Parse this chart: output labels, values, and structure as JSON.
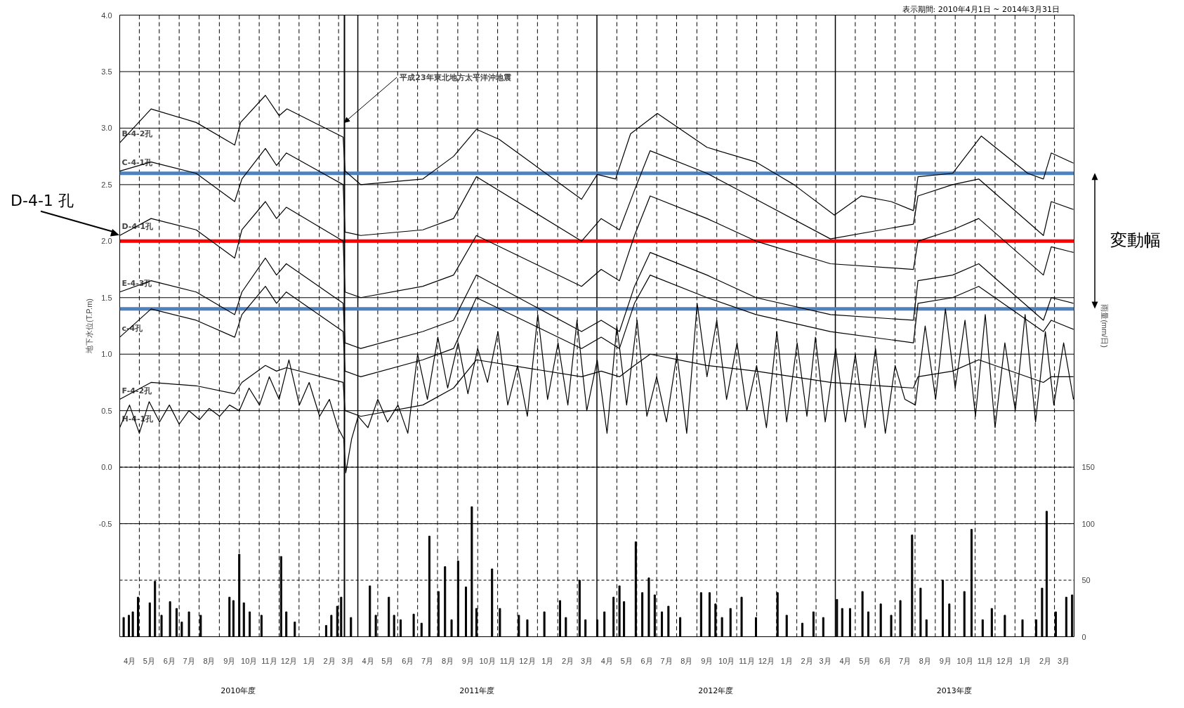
{
  "chart_data": {
    "type": "line",
    "ylabel": "地下水位(T.P.m)",
    "y2label": "雨量(mm/日)",
    "xlim": [
      "2010-04-01",
      "2014-04-01"
    ],
    "ylim": [
      -1.5,
      4.0
    ],
    "y2lim": [
      0,
      550
    ],
    "xticks": [
      {
        "value": "2010-04-16",
        "label": "4月"
      },
      {
        "value": "2010-05-16",
        "label": "5月"
      },
      {
        "value": "2010-06-16",
        "label": "6月"
      },
      {
        "value": "2010-07-16",
        "label": "7月"
      },
      {
        "value": "2010-08-16",
        "label": "8月"
      },
      {
        "value": "2010-09-16",
        "label": "9月"
      },
      {
        "value": "2010-10-16",
        "label": "10月"
      },
      {
        "value": "2010-11-16",
        "label": "11月"
      },
      {
        "value": "2010-12-16",
        "label": "12月"
      },
      {
        "value": "2011-01-16",
        "label": "1月"
      },
      {
        "value": "2011-02-16",
        "label": "2月"
      },
      {
        "value": "2011-03-16",
        "label": "3月"
      },
      {
        "value": "2011-04-16",
        "label": "4月"
      },
      {
        "value": "2011-05-16",
        "label": "5月"
      },
      {
        "value": "2011-06-16",
        "label": "6月"
      },
      {
        "value": "2011-07-16",
        "label": "7月"
      },
      {
        "value": "2011-08-16",
        "label": "8月"
      },
      {
        "value": "2011-09-16",
        "label": "9月"
      },
      {
        "value": "2011-10-16",
        "label": "10月"
      },
      {
        "value": "2011-11-16",
        "label": "11月"
      },
      {
        "value": "2011-12-16",
        "label": "12月"
      },
      {
        "value": "2012-01-16",
        "label": "1月"
      },
      {
        "value": "2012-02-16",
        "label": "2月"
      },
      {
        "value": "2012-03-16",
        "label": "3月"
      },
      {
        "value": "2012-04-16",
        "label": "4月"
      },
      {
        "value": "2012-05-16",
        "label": "5月"
      },
      {
        "value": "2012-06-16",
        "label": "6月"
      },
      {
        "value": "2012-07-16",
        "label": "7月"
      },
      {
        "value": "2012-08-16",
        "label": "8月"
      },
      {
        "value": "2012-09-16",
        "label": "9月"
      },
      {
        "value": "2012-10-16",
        "label": "10月"
      },
      {
        "value": "2012-11-16",
        "label": "11月"
      },
      {
        "value": "2012-12-16",
        "label": "12月"
      },
      {
        "value": "2013-01-16",
        "label": "1月"
      },
      {
        "value": "2013-02-16",
        "label": "2月"
      },
      {
        "value": "2013-03-16",
        "label": "3月"
      },
      {
        "value": "2013-04-16",
        "label": "4月"
      },
      {
        "value": "2013-05-16",
        "label": "5月"
      },
      {
        "value": "2013-06-16",
        "label": "6月"
      },
      {
        "value": "2013-07-16",
        "label": "7月"
      },
      {
        "value": "2013-08-16",
        "label": "8月"
      },
      {
        "value": "2013-09-16",
        "label": "9月"
      },
      {
        "value": "2013-10-16",
        "label": "10月"
      },
      {
        "value": "2013-11-16",
        "label": "11月"
      },
      {
        "value": "2013-12-16",
        "label": "12月"
      },
      {
        "value": "2014-01-16",
        "label": "1月"
      },
      {
        "value": "2014-02-16",
        "label": "2月"
      },
      {
        "value": "2014-03-16",
        "label": "3月"
      }
    ],
    "yticks": [
      {
        "value": -0.5,
        "label": "-0.5"
      },
      {
        "value": 0,
        "label": "0.0"
      },
      0.5,
      {
        "value": 1,
        "label": "1.0"
      },
      1.5,
      {
        "value": 2,
        "label": "2.0"
      },
      2.5,
      {
        "value": 3,
        "label": "3.0"
      },
      3.5,
      {
        "value": 4,
        "label": "4.0"
      }
    ],
    "y2ticks": [
      0,
      50,
      100,
      150
    ],
    "grid": true,
    "series": [
      {
        "name": "B-4-2孔",
        "color": "#000000",
        "x": [
          "2010-04-01",
          "2010-05-19",
          "2010-07-27",
          "2010-09-24",
          "2010-10-03",
          "2010-11-10",
          "2010-12-01",
          "2010-12-13",
          "2011-03-09",
          "2011-03-12",
          "2011-04-05",
          "2011-07-09",
          "2011-08-25",
          "2011-09-29",
          "2011-11-03",
          "2012-03-08",
          "2012-04-01",
          "2012-04-29",
          "2012-05-22",
          "2012-07-02",
          "2012-09-16",
          "2012-11-30",
          "2013-01-27",
          "2013-03-30",
          "2013-05-10",
          "2013-06-25",
          "2013-07-29",
          "2013-08-05",
          "2013-09-27",
          "2013-11-10",
          "2014-01-20",
          "2014-02-13",
          "2014-02-25",
          "2014-03-31"
        ],
        "values": [
          2.87,
          3.17,
          3.05,
          2.85,
          3.05,
          3.29,
          3.11,
          3.17,
          2.92,
          2.62,
          2.5,
          2.55,
          2.75,
          2.99,
          2.9,
          2.37,
          2.59,
          2.55,
          2.95,
          3.13,
          2.83,
          2.7,
          2.5,
          2.23,
          2.4,
          2.35,
          2.27,
          2.57,
          2.6,
          2.93,
          2.6,
          2.55,
          2.78,
          2.69
        ]
      },
      {
        "name": "C-4-1孔",
        "color": "#000000",
        "x": [
          "2010-04-01",
          "2010-05-19",
          "2010-07-27",
          "2010-09-24",
          "2010-10-05",
          "2010-11-10",
          "2010-11-27",
          "2010-12-12",
          "2011-03-09",
          "2011-03-12",
          "2011-04-05",
          "2011-07-09",
          "2011-08-25",
          "2011-09-29",
          "2012-03-08",
          "2012-04-07",
          "2012-05-05",
          "2012-05-28",
          "2012-06-21",
          "2012-09-16",
          "2012-11-30",
          "2013-03-24",
          "2013-07-29",
          "2013-08-05",
          "2013-09-27",
          "2013-11-06",
          "2014-02-13",
          "2014-02-25",
          "2014-03-31"
        ],
        "values": [
          2.62,
          2.7,
          2.6,
          2.35,
          2.55,
          2.82,
          2.67,
          2.78,
          2.5,
          2.08,
          2.05,
          2.1,
          2.2,
          2.57,
          2.0,
          2.2,
          2.1,
          2.45,
          2.8,
          2.6,
          2.37,
          2.02,
          2.15,
          2.4,
          2.5,
          2.55,
          2.05,
          2.35,
          2.28
        ]
      },
      {
        "name": "D-4-1孔",
        "color": "#000000",
        "x": [
          "2010-04-01",
          "2010-05-19",
          "2010-07-27",
          "2010-09-24",
          "2010-10-05",
          "2010-11-10",
          "2010-11-27",
          "2010-12-12",
          "2011-03-09",
          "2011-03-12",
          "2011-04-05",
          "2011-07-09",
          "2011-08-25",
          "2011-09-29",
          "2012-03-08",
          "2012-04-07",
          "2012-05-05",
          "2012-05-28",
          "2012-06-21",
          "2012-09-16",
          "2012-11-30",
          "2013-03-24",
          "2013-07-29",
          "2013-08-05",
          "2013-09-27",
          "2013-11-06",
          "2014-02-13",
          "2014-02-25",
          "2014-03-31"
        ],
        "values": [
          2.05,
          2.2,
          2.1,
          1.85,
          2.1,
          2.35,
          2.2,
          2.3,
          2.0,
          1.55,
          1.5,
          1.6,
          1.7,
          2.05,
          1.6,
          1.75,
          1.65,
          2.05,
          2.4,
          2.2,
          2.0,
          1.8,
          1.75,
          2.0,
          2.1,
          2.2,
          1.7,
          1.95,
          1.9
        ]
      },
      {
        "name": "E-4-3孔",
        "color": "#000000",
        "x": [
          "2010-04-01",
          "2010-05-19",
          "2010-07-27",
          "2010-09-24",
          "2010-10-05",
          "2010-11-10",
          "2010-11-27",
          "2010-12-12",
          "2011-03-09",
          "2011-03-12",
          "2011-04-05",
          "2011-07-09",
          "2011-08-25",
          "2011-09-29",
          "2012-03-08",
          "2012-04-07",
          "2012-05-05",
          "2012-05-28",
          "2012-06-21",
          "2012-09-16",
          "2012-11-30",
          "2013-03-24",
          "2013-07-29",
          "2013-08-05",
          "2013-09-27",
          "2013-11-06",
          "2014-02-13",
          "2014-02-25",
          "2014-03-31"
        ],
        "values": [
          1.55,
          1.65,
          1.55,
          1.35,
          1.55,
          1.85,
          1.7,
          1.8,
          1.45,
          1.1,
          1.05,
          1.2,
          1.3,
          1.7,
          1.2,
          1.3,
          1.2,
          1.6,
          1.9,
          1.7,
          1.5,
          1.35,
          1.3,
          1.65,
          1.7,
          1.8,
          1.3,
          1.5,
          1.45
        ]
      },
      {
        "name": "c-4孔",
        "color": "#000000",
        "x": [
          "2010-04-01",
          "2010-05-19",
          "2010-07-27",
          "2010-09-24",
          "2010-10-05",
          "2010-11-10",
          "2010-11-27",
          "2010-12-12",
          "2011-03-09",
          "2011-03-12",
          "2011-04-05",
          "2011-07-09",
          "2011-08-25",
          "2011-09-29",
          "2012-03-08",
          "2012-04-07",
          "2012-05-05",
          "2012-05-28",
          "2012-06-21",
          "2012-09-16",
          "2012-11-30",
          "2013-03-24",
          "2013-07-29",
          "2013-08-05",
          "2013-09-27",
          "2013-11-06",
          "2014-02-13",
          "2014-02-25",
          "2014-03-31"
        ],
        "values": [
          1.15,
          1.4,
          1.3,
          1.15,
          1.35,
          1.6,
          1.45,
          1.55,
          1.2,
          0.85,
          0.8,
          0.95,
          1.05,
          1.5,
          1.05,
          1.15,
          1.05,
          1.45,
          1.7,
          1.5,
          1.35,
          1.2,
          1.1,
          1.45,
          1.5,
          1.6,
          1.2,
          1.3,
          1.22
        ]
      },
      {
        "name": "F-4-2孔",
        "color": "#000000",
        "x": [
          "2010-04-01",
          "2010-05-19",
          "2010-07-27",
          "2010-09-24",
          "2010-10-05",
          "2010-11-10",
          "2010-11-27",
          "2010-12-12",
          "2011-03-09",
          "2011-03-12",
          "2011-04-05",
          "2011-07-09",
          "2011-08-25",
          "2011-09-29",
          "2012-03-08",
          "2012-04-07",
          "2012-05-05",
          "2012-05-28",
          "2012-06-21",
          "2012-09-16",
          "2012-11-30",
          "2013-03-24",
          "2013-07-29",
          "2013-08-05",
          "2013-09-27",
          "2013-11-06",
          "2014-02-13",
          "2014-02-25",
          "2014-03-31"
        ],
        "values": [
          0.6,
          0.75,
          0.72,
          0.65,
          0.75,
          0.9,
          0.85,
          0.88,
          0.75,
          0.5,
          0.45,
          0.55,
          0.7,
          0.95,
          0.8,
          0.85,
          0.8,
          0.9,
          1.0,
          0.9,
          0.85,
          0.75,
          0.7,
          0.8,
          0.85,
          0.95,
          0.75,
          0.8,
          0.8
        ]
      },
      {
        "name": "H-4-1孔",
        "color": "#000000",
        "x": [
          "2010-04-01",
          "2010-04-16",
          "2010-05-01",
          "2010-05-16",
          "2010-06-01",
          "2010-06-16",
          "2010-07-01",
          "2010-07-16",
          "2010-08-01",
          "2010-08-16",
          "2010-09-01",
          "2010-09-16",
          "2010-10-01",
          "2010-10-16",
          "2010-11-01",
          "2010-11-16",
          "2010-12-01",
          "2010-12-16",
          "2011-01-01",
          "2011-01-16",
          "2011-02-01",
          "2011-02-16",
          "2011-03-01",
          "2011-03-10",
          "2011-03-13",
          "2011-03-22",
          "2011-04-01",
          "2011-04-16",
          "2011-05-01",
          "2011-05-16",
          "2011-06-01",
          "2011-06-16",
          "2011-07-01",
          "2011-07-16",
          "2011-08-01",
          "2011-08-16",
          "2011-09-01",
          "2011-09-16",
          "2011-10-01",
          "2011-10-16",
          "2011-11-01",
          "2011-11-16",
          "2011-12-01",
          "2011-12-16",
          "2012-01-01",
          "2012-01-16",
          "2012-02-01",
          "2012-02-16",
          "2012-03-01",
          "2012-03-16",
          "2012-04-01",
          "2012-04-16",
          "2012-05-01",
          "2012-05-16",
          "2012-06-01",
          "2012-06-16",
          "2012-07-01",
          "2012-07-16",
          "2012-08-01",
          "2012-08-16",
          "2012-09-01",
          "2012-09-16",
          "2012-10-01",
          "2012-10-16",
          "2012-11-01",
          "2012-11-16",
          "2012-12-01",
          "2012-12-16",
          "2013-01-01",
          "2013-01-16",
          "2013-02-01",
          "2013-02-16",
          "2013-03-01",
          "2013-03-16",
          "2013-04-01",
          "2013-04-16",
          "2013-05-01",
          "2013-05-16",
          "2013-06-01",
          "2013-06-16",
          "2013-07-01",
          "2013-07-16",
          "2013-08-01",
          "2013-08-16",
          "2013-09-01",
          "2013-09-16",
          "2013-10-01",
          "2013-10-16",
          "2013-11-01",
          "2013-11-16",
          "2013-12-01",
          "2013-12-16",
          "2014-01-01",
          "2014-01-16",
          "2014-02-01",
          "2014-02-16",
          "2014-03-01",
          "2014-03-16",
          "2014-03-31"
        ],
        "values": [
          0.35,
          0.55,
          0.3,
          0.58,
          0.4,
          0.55,
          0.38,
          0.5,
          0.42,
          0.52,
          0.45,
          0.55,
          0.5,
          0.7,
          0.55,
          0.8,
          0.6,
          0.95,
          0.55,
          0.75,
          0.45,
          0.6,
          0.35,
          0.25,
          -0.05,
          0.25,
          0.45,
          0.35,
          0.6,
          0.4,
          0.55,
          0.3,
          1.0,
          0.6,
          1.15,
          0.7,
          1.1,
          0.65,
          1.05,
          0.75,
          1.2,
          0.55,
          0.9,
          0.45,
          1.35,
          0.6,
          1.1,
          0.55,
          1.3,
          0.5,
          0.95,
          0.3,
          1.25,
          0.55,
          1.3,
          0.45,
          0.8,
          0.4,
          1.0,
          0.3,
          1.45,
          0.8,
          1.3,
          0.6,
          1.1,
          0.5,
          0.9,
          0.35,
          1.2,
          0.4,
          1.1,
          0.45,
          1.15,
          0.4,
          1.05,
          0.4,
          1.0,
          0.35,
          1.05,
          0.3,
          0.9,
          0.6,
          0.55,
          1.25,
          0.6,
          1.4,
          0.7,
          1.3,
          0.45,
          1.35,
          0.35,
          1.1,
          0.5,
          1.35,
          0.4,
          1.2,
          0.55,
          1.1,
          0.6
        ]
      },
      {
        "type": "bar",
        "axis": "y2",
        "color": "#000000",
        "x": [
          "2010-04-07",
          "2010-04-15",
          "2010-04-21",
          "2010-04-29",
          "2010-05-17",
          "2010-05-25",
          "2010-06-04",
          "2010-06-17",
          "2010-06-27",
          "2010-07-05",
          "2010-07-16",
          "2010-08-03",
          "2010-09-16",
          "2010-09-22",
          "2010-10-01",
          "2010-10-08",
          "2010-10-17",
          "2010-11-04",
          "2010-12-04",
          "2010-12-12",
          "2010-12-25",
          "2011-02-11",
          "2011-02-19",
          "2011-02-28",
          "2011-03-06",
          "2011-03-21",
          "2011-04-19",
          "2011-04-28",
          "2011-05-18",
          "2011-05-26",
          "2011-06-05",
          "2011-06-25",
          "2011-07-07",
          "2011-07-19",
          "2011-08-02",
          "2011-08-12",
          "2011-08-22",
          "2011-09-01",
          "2011-09-13",
          "2011-09-22",
          "2011-09-29",
          "2011-10-23",
          "2011-11-04",
          "2011-12-03",
          "2011-12-16",
          "2012-01-11",
          "2012-02-04",
          "2012-02-13",
          "2012-03-05",
          "2012-03-14",
          "2012-04-01",
          "2012-04-12",
          "2012-04-26",
          "2012-05-05",
          "2012-05-12",
          "2012-05-30",
          "2012-06-09",
          "2012-06-19",
          "2012-06-28",
          "2012-07-09",
          "2012-07-19",
          "2012-08-06",
          "2012-09-07",
          "2012-09-20",
          "2012-09-29",
          "2012-10-09",
          "2012-10-22",
          "2012-11-08",
          "2012-11-30",
          "2013-01-02",
          "2013-01-16",
          "2013-02-09",
          "2013-02-26",
          "2013-03-13",
          "2013-04-03",
          "2013-04-11",
          "2013-04-23",
          "2013-05-12",
          "2013-05-21",
          "2013-06-09",
          "2013-06-25",
          "2013-07-09",
          "2013-07-27",
          "2013-08-09",
          "2013-08-18",
          "2013-09-12",
          "2013-09-22",
          "2013-10-15",
          "2013-10-26",
          "2013-11-12",
          "2013-11-26",
          "2013-12-16",
          "2014-01-12",
          "2014-02-02",
          "2014-02-11",
          "2014-02-18",
          "2014-03-04",
          "2014-03-20",
          "2014-03-29"
        ],
        "values": [
          17,
          19,
          22,
          35,
          30,
          49,
          19,
          31,
          25,
          13,
          22,
          19,
          35,
          32,
          73,
          30,
          22,
          19,
          71,
          22,
          13,
          10,
          19,
          27,
          35,
          17,
          45,
          19,
          35,
          19,
          15,
          20,
          12,
          89,
          40,
          62,
          15,
          67,
          44,
          115,
          25,
          60,
          25,
          19,
          15,
          22,
          32,
          17,
          50,
          15,
          15,
          22,
          35,
          45,
          31,
          84,
          39,
          52,
          37,
          22,
          27,
          17,
          39,
          39,
          29,
          17,
          25,
          35,
          17,
          39,
          19,
          12,
          22,
          17,
          33,
          25,
          25,
          40,
          22,
          29,
          19,
          32,
          90,
          43,
          15,
          50,
          29,
          40,
          95,
          15,
          25,
          19,
          15,
          15,
          43,
          111,
          22,
          35,
          37
        ]
      }
    ],
    "ref_lines": [
      {
        "axis": "y",
        "value": 2.6,
        "color": "#4f81bd"
      },
      {
        "axis": "y",
        "value": 2.0,
        "color": "#ff0000"
      },
      {
        "axis": "y",
        "value": 1.4,
        "color": "#4f81bd"
      },
      {
        "axis": "x",
        "value": "2011-03-11",
        "color": "#000000",
        "label": "平成23年東北地方太平洋沖地震"
      }
    ],
    "annotations": [
      "表示期間: 2010年4月1日 ~ 2014年3月31日",
      "D-4-1 孔",
      "変動幅",
      "2010年度",
      "2011年度",
      "2012年度",
      "2013年度"
    ]
  }
}
